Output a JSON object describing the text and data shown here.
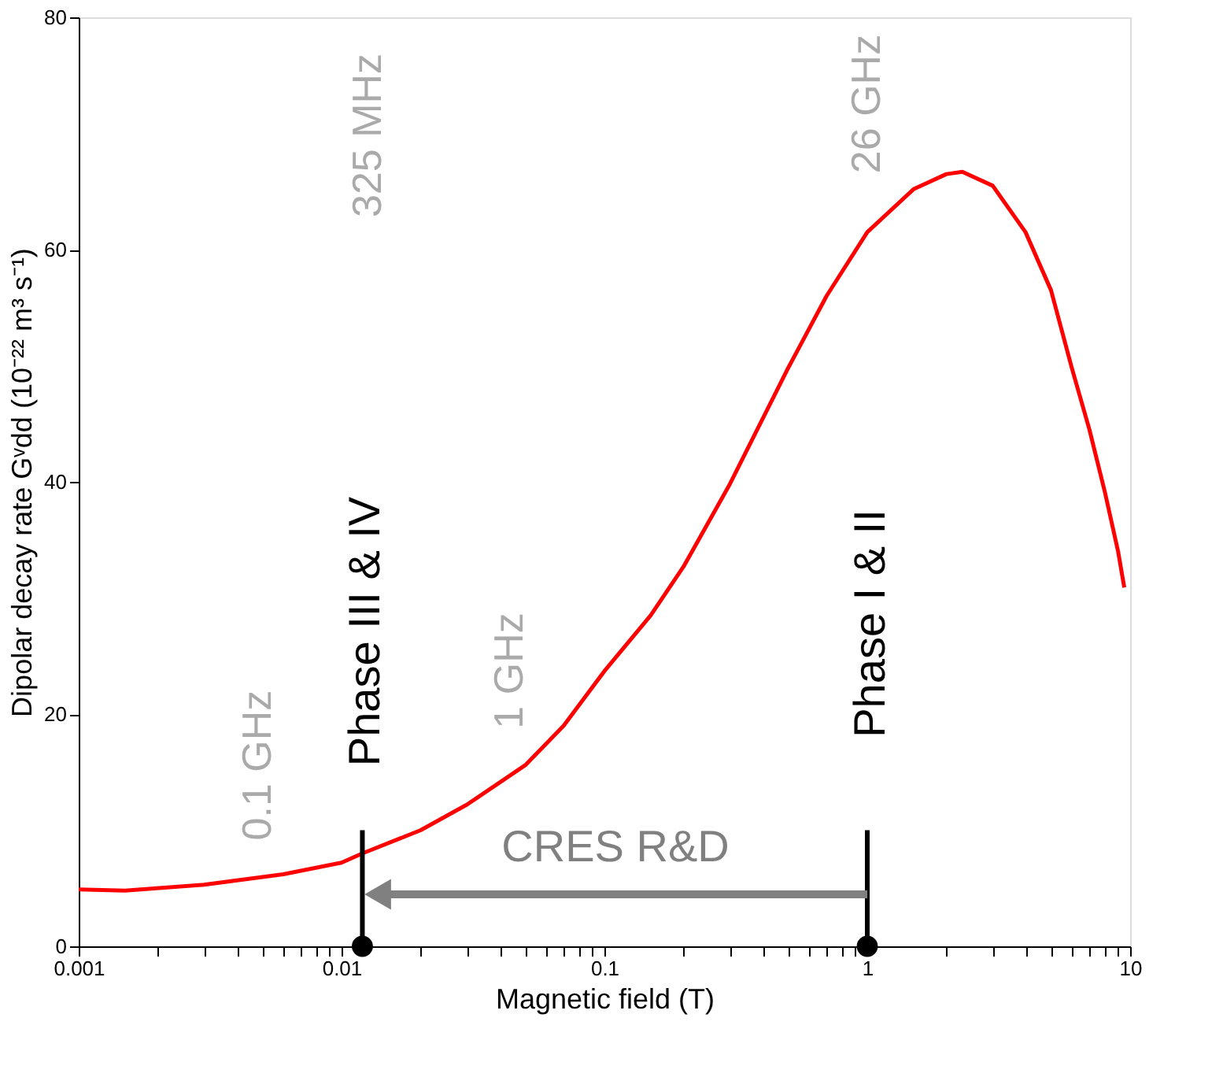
{
  "chart_data": {
    "type": "line",
    "xlabel": "Magnetic field (T)",
    "ylabel": "Dipolar decay rate Gᵛdd (10⁻²² m³ s⁻¹)",
    "log": "x",
    "xlim": [
      0.001,
      10
    ],
    "ylim": [
      0,
      80
    ],
    "xticks": [
      0.001,
      {
        "value": 0.002,
        "label": null
      },
      {
        "value": 0.003,
        "label": null
      },
      {
        "value": 0.004,
        "label": null
      },
      {
        "value": 0.005,
        "label": null
      },
      {
        "value": 0.006,
        "label": null
      },
      {
        "value": 0.007,
        "label": null
      },
      {
        "value": 0.008,
        "label": null
      },
      {
        "value": 0.009,
        "label": null
      },
      0.01,
      {
        "value": 0.02,
        "label": null
      },
      {
        "value": 0.03,
        "label": null
      },
      {
        "value": 0.04,
        "label": null
      },
      {
        "value": 0.05,
        "label": null
      },
      {
        "value": 0.06,
        "label": null
      },
      {
        "value": 0.07,
        "label": null
      },
      {
        "value": 0.08,
        "label": null
      },
      {
        "value": 0.09,
        "label": null
      },
      0.1,
      {
        "value": 0.2,
        "label": null
      },
      {
        "value": 0.3,
        "label": null
      },
      {
        "value": 0.4,
        "label": null
      },
      {
        "value": 0.5,
        "label": null
      },
      {
        "value": 0.6,
        "label": null
      },
      {
        "value": 0.7,
        "label": null
      },
      {
        "value": 0.8,
        "label": null
      },
      {
        "value": 0.9,
        "label": null
      },
      1,
      {
        "value": 2,
        "label": null
      },
      {
        "value": 3,
        "label": null
      },
      {
        "value": 4,
        "label": null
      },
      {
        "value": 5,
        "label": null
      },
      {
        "value": 6,
        "label": null
      },
      {
        "value": 7,
        "label": null
      },
      {
        "value": 8,
        "label": null
      },
      {
        "value": 9,
        "label": null
      },
      10
    ],
    "yticks": [
      0,
      20,
      40,
      60,
      80
    ],
    "series": [
      {
        "color": "#ff0000",
        "x": [
          0.001,
          0.0015,
          0.003,
          0.006,
          0.01,
          0.012,
          0.02,
          0.03,
          0.05,
          0.07,
          0.1,
          0.15,
          0.2,
          0.3,
          0.5,
          0.7,
          1,
          1.5,
          2,
          2.3,
          3,
          4,
          5,
          6,
          7,
          8,
          9,
          9.5
        ],
        "values": [
          4.9,
          4.8,
          5.3,
          6.2,
          7.2,
          8.0,
          10.0,
          12.2,
          15.6,
          19.0,
          23.7,
          28.5,
          32.7,
          39.8,
          49.8,
          56.0,
          61.5,
          65.2,
          66.5,
          66.7,
          65.5,
          61.5,
          56.5,
          49.8,
          44.5,
          39.2,
          34.0,
          30.9
        ]
      },
      {
        "type": "line",
        "color": "#000000",
        "x": [
          0.012,
          0.012
        ],
        "values": [
          0,
          10
        ]
      },
      {
        "type": "line",
        "color": "#000000",
        "x": [
          1,
          1
        ],
        "values": [
          0,
          10
        ]
      },
      {
        "type": "scatter",
        "color": "#000000",
        "marker": "circle",
        "x": [
          0.012,
          1
        ],
        "values": [
          0,
          0
        ]
      }
    ],
    "annotations": [
      "0.1 GHz",
      "Phase III & IV",
      "1 GHz",
      "325 MHz",
      "CRES R&D",
      "Phase I & II",
      "26 GHz"
    ]
  }
}
